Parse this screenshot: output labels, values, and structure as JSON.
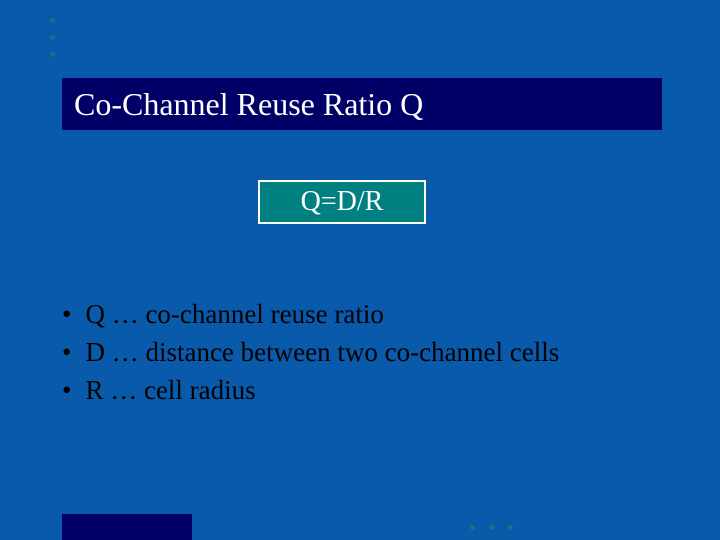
{
  "colors": {
    "background": "#0a5aab",
    "title_bar_bg": "#000066",
    "title_text": "#ffffff",
    "formula_bg": "#008080",
    "formula_border": "#ffffff",
    "formula_text": "#ffffff",
    "bullet_text": "#000000",
    "accent_bg": "#000066",
    "dot_color": "#008080"
  },
  "typography": {
    "font_family": "Times New Roman",
    "title_fontsize": 32,
    "formula_fontsize": 28,
    "bullet_fontsize": 27
  },
  "title": "Co-Channel Reuse Ratio Q",
  "formula": "Q=D/R",
  "bullets": [
    "Q … co-channel reuse ratio",
    "D … distance between two co-channel cells",
    "R … cell radius"
  ],
  "decorations": {
    "top_dots_count": 3,
    "bottom_dots_count": 3
  }
}
